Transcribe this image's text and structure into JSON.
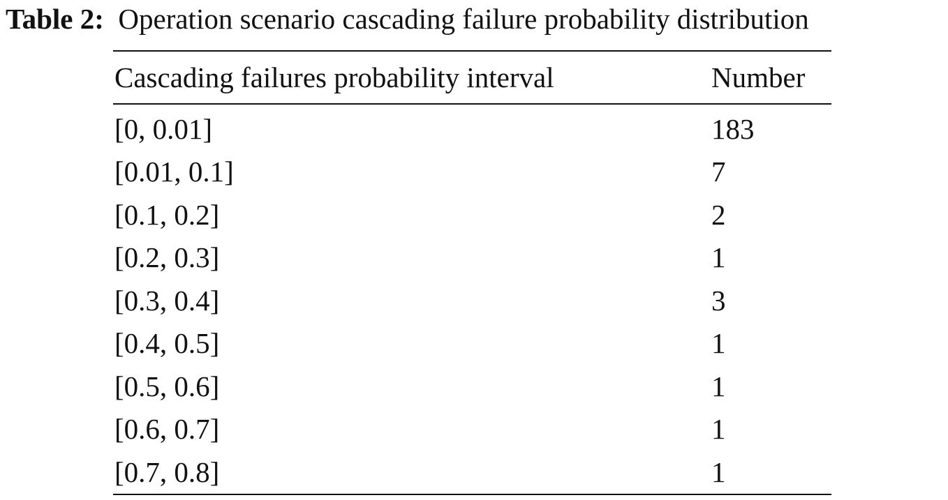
{
  "caption": {
    "label": "Table 2:",
    "text": "Operation scenario cascading failure probability distribution"
  },
  "table": {
    "headers": [
      "Cascading failures probability interval",
      "Number"
    ],
    "rows": [
      [
        "[0, 0.01]",
        "183"
      ],
      [
        "[0.01, 0.1]",
        "7"
      ],
      [
        "[0.1, 0.2]",
        "2"
      ],
      [
        "[0.2, 0.3]",
        "1"
      ],
      [
        "[0.3, 0.4]",
        "3"
      ],
      [
        "[0.4, 0.5]",
        "1"
      ],
      [
        "[0.5, 0.6]",
        "1"
      ],
      [
        "[0.6, 0.7]",
        "1"
      ],
      [
        "[0.7, 0.8]",
        "1"
      ]
    ]
  }
}
